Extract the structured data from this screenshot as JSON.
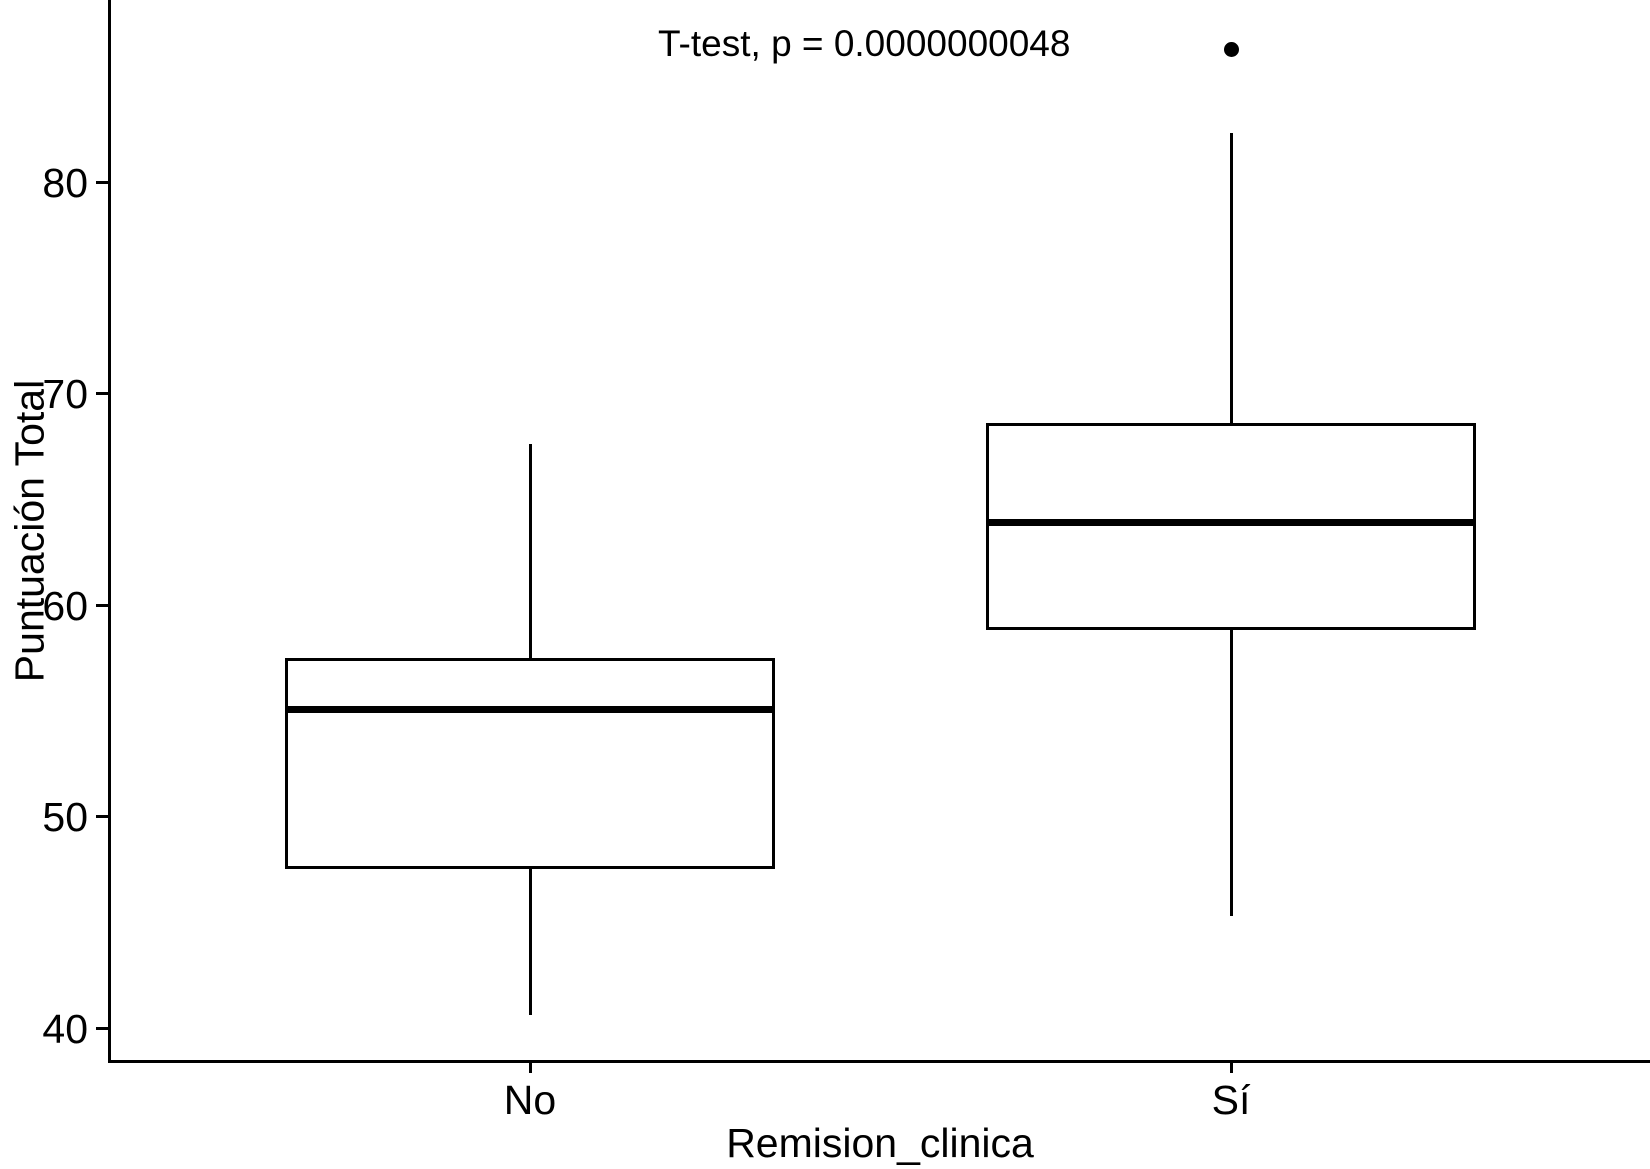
{
  "chart_data": {
    "type": "boxplot",
    "title": "",
    "xlabel": "Remision_clinica",
    "ylabel": "Puntuación Total",
    "annotation": "T-test, p = 0.0000000048",
    "categories": [
      "No",
      "Sí"
    ],
    "y_ticks": [
      40,
      50,
      60,
      70,
      80
    ],
    "ylim": [
      38.4,
      88.6
    ],
    "grid": false,
    "legend": "none",
    "series": [
      {
        "name": "No",
        "whisker_low": 40.6,
        "q1": 47.5,
        "median": 55.1,
        "q3": 57.5,
        "whisker_high": 67.6,
        "outliers": []
      },
      {
        "name": "Sí",
        "whisker_low": 45.3,
        "q1": 58.8,
        "median": 63.9,
        "q3": 68.6,
        "whisker_high": 82.3,
        "outliers": [
          86.3
        ]
      }
    ]
  },
  "colors": {
    "line": "#000000",
    "text": "#000000",
    "box_fill": "#ffffff",
    "background": "#ffffff"
  }
}
